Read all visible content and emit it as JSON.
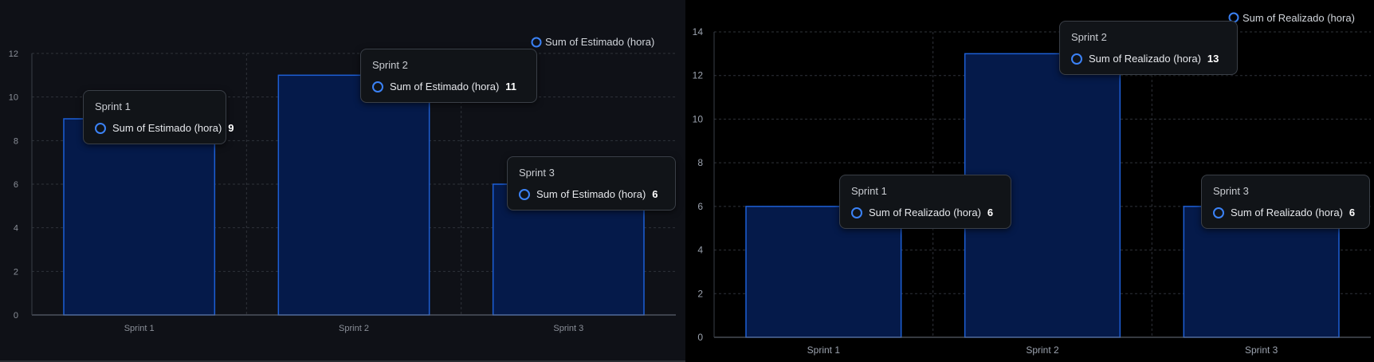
{
  "colors": {
    "bar_fill": "#051a4a",
    "bar_stroke": "#1d5fd6",
    "marker": "#3b82f6",
    "left_background": "#0f1117",
    "right_background": "#000000"
  },
  "chart_data": [
    {
      "type": "bar",
      "categories": [
        "Sprint 1",
        "Sprint 2",
        "Sprint 3"
      ],
      "series": [
        {
          "name": "Sum of Estimado (hora)",
          "values": [
            9,
            11,
            6
          ]
        }
      ],
      "yticks": [
        "0",
        "2",
        "4",
        "6",
        "8",
        "10",
        "12"
      ],
      "ylim": [
        0,
        12
      ],
      "grid": true,
      "legend_position": "top-right",
      "tooltips": [
        {
          "title": "Sprint 1",
          "series": "Sum of Estimado (hora)",
          "value": "9"
        },
        {
          "title": "Sprint 2",
          "series": "Sum of Estimado (hora)",
          "value": "11"
        },
        {
          "title": "Sprint 3",
          "series": "Sum of Estimado (hora)",
          "value": "6"
        }
      ]
    },
    {
      "type": "bar",
      "categories": [
        "Sprint 1",
        "Sprint 2",
        "Sprint 3"
      ],
      "series": [
        {
          "name": "Sum of Realizado (hora)",
          "values": [
            6,
            13,
            6
          ]
        }
      ],
      "yticks": [
        "0",
        "2",
        "4",
        "6",
        "8",
        "10",
        "12",
        "14"
      ],
      "ylim": [
        0,
        14
      ],
      "grid": true,
      "legend_position": "top-right",
      "tooltips": [
        {
          "title": "Sprint 1",
          "series": "Sum of Realizado (hora)",
          "value": "6"
        },
        {
          "title": "Sprint 2",
          "series": "Sum of Realizado (hora)",
          "value": "13"
        },
        {
          "title": "Sprint 3",
          "series": "Sum of Realizado (hora)",
          "value": "6"
        }
      ]
    }
  ]
}
